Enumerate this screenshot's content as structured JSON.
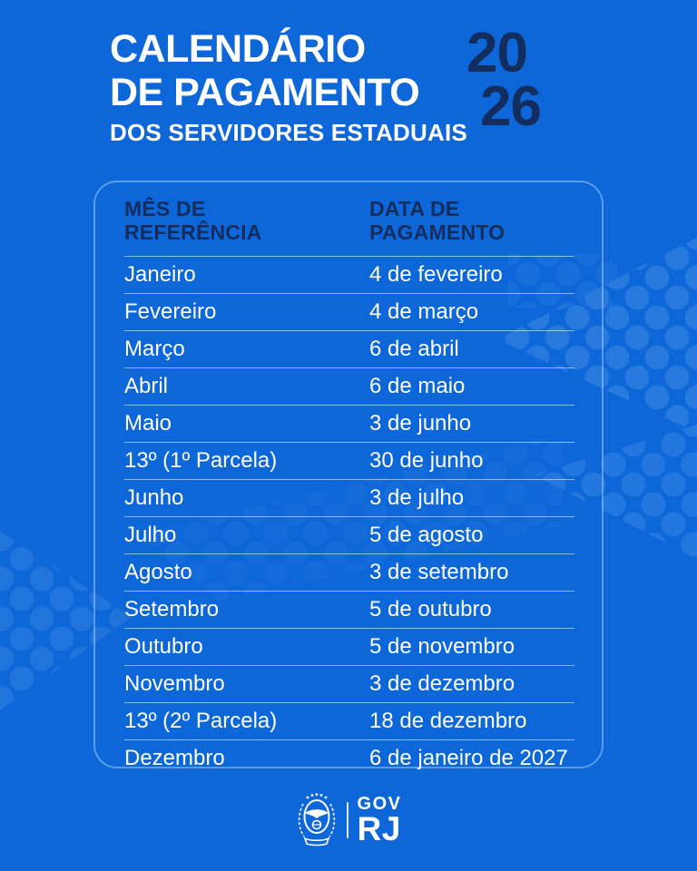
{
  "header": {
    "title_line1": "CALENDÁRIO",
    "title_line2": "DE PAGAMENTO",
    "subtitle": "DOS SERVIDORES ESTADUAIS",
    "year_top": "20",
    "year_bottom": "26"
  },
  "table": {
    "columns": [
      {
        "label": "MÊS DE\nREFERÊNCIA"
      },
      {
        "label": "DATA DE\nPAGAMENTO"
      }
    ],
    "rows": [
      {
        "month": "Janeiro",
        "date": "4 de fevereiro"
      },
      {
        "month": "Fevereiro",
        "date": "4 de março"
      },
      {
        "month": "Março",
        "date": "6 de abril"
      },
      {
        "month": "Abril",
        "date": "6 de maio"
      },
      {
        "month": "Maio",
        "date": "3 de junho"
      },
      {
        "month": "13º (1º Parcela)",
        "date": "30 de junho"
      },
      {
        "month": "Junho",
        "date": "3 de julho"
      },
      {
        "month": "Julho",
        "date": "5 de agosto"
      },
      {
        "month": "Agosto",
        "date": "3 de setembro"
      },
      {
        "month": "Setembro",
        "date": "5 de outubro"
      },
      {
        "month": "Outubro",
        "date": "5 de novembro"
      },
      {
        "month": "Novembro",
        "date": "3 de dezembro"
      },
      {
        "month": "13º (2º Parcela)",
        "date": "18 de dezembro"
      },
      {
        "month": "Dezembro",
        "date": "6 de janeiro de 2027"
      }
    ]
  },
  "footer": {
    "gov_label": "GOV",
    "rj_label": "RJ",
    "emblem_name": "rio-de-janeiro-state-coat-of-arms"
  },
  "colors": {
    "background": "#0d67d8",
    "dot_accent": "#2d7de0",
    "navy_text": "#132e5e",
    "white_text": "#ffffff",
    "table_border": "rgba(186,220,255,0.45)",
    "row_divider": "rgba(255,255,255,0.55)"
  }
}
